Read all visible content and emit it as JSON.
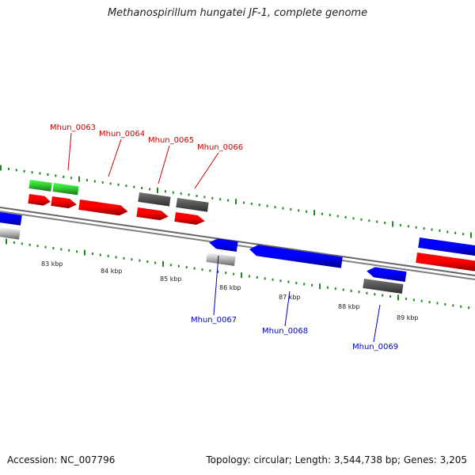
{
  "title": "Methanospirillum hungatei JF-1, complete genome",
  "footer": {
    "accession": "Accession: NC_007796",
    "summary": "Topology: circular; Length: 3,544,738 bp; Genes: 3,205"
  },
  "colors": {
    "forward_gene": "#ff0000",
    "reverse_gene": "#0000ff",
    "forward_cds": "#33cc33",
    "gray_feature": "#555555",
    "light_feature": "#bbbbbb",
    "tick": "#228822",
    "backbone": "#666666",
    "forward_label": "#cc0000",
    "reverse_label": "#0000cc"
  },
  "tick_labels": [
    "83 kbp",
    "84 kbp",
    "85 kbp",
    "86 kbp",
    "87 kbp",
    "88 kbp",
    "89 kbp"
  ],
  "forward_labels": [
    "Mhun_0063",
    "Mhun_0064",
    "Mhun_0065",
    "Mhun_0066"
  ],
  "reverse_labels": [
    "Mhun_0067",
    "Mhun_0068",
    "Mhun_0069"
  ]
}
